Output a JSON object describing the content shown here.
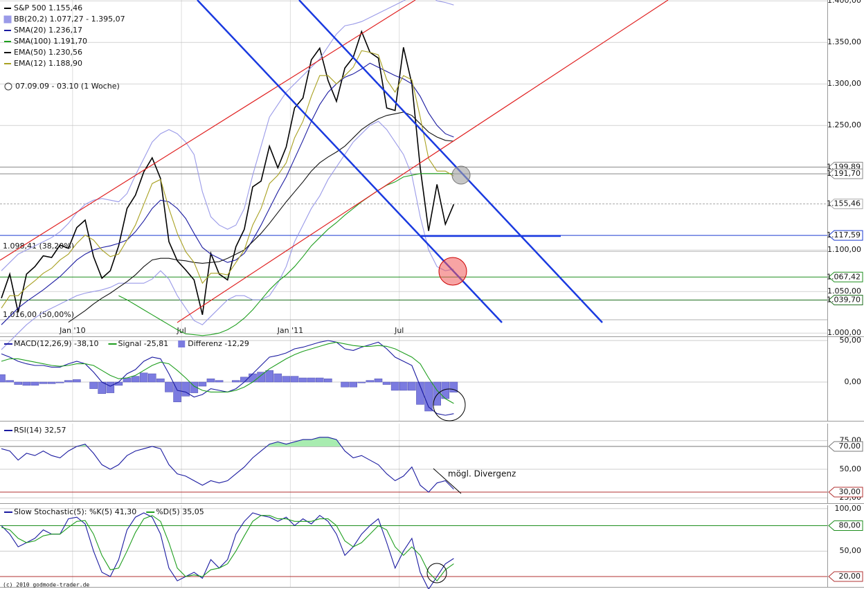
{
  "chart_data": [
    {
      "type": "line",
      "subtitle": "07.09.09 - 03.10 (1 Woche)",
      "x": [
        0,
        2,
        4,
        6,
        8,
        10,
        12,
        14,
        16,
        18,
        20,
        22,
        24,
        26,
        28,
        30,
        32,
        34,
        36,
        38,
        40,
        42,
        44,
        46,
        48,
        50,
        52,
        54,
        56,
        58,
        60,
        62,
        64,
        66,
        68,
        70,
        72,
        74,
        76,
        78,
        80,
        82,
        84,
        86,
        88,
        90,
        92,
        94,
        96,
        98,
        100,
        102,
        104,
        106,
        108
      ],
      "xlim": [
        -0.33,
        197.2
      ],
      "xticks": [
        {
          "value": 17,
          "label": "Jan '10"
        },
        {
          "value": 43,
          "label": "Jul"
        },
        {
          "value": 69,
          "label": "Jan '11"
        },
        {
          "value": 95,
          "label": "Jul"
        }
      ],
      "ylim": [
        996,
        1401
      ],
      "yticks": [
        {
          "value": 1400,
          "label": "1.400,00"
        },
        {
          "value": 1350,
          "label": "1.350,00"
        },
        {
          "value": 1300,
          "label": "1.300,00"
        },
        {
          "value": 1250,
          "label": "1.250,00"
        },
        {
          "value": 1100,
          "label": "1.100,00"
        },
        {
          "value": 1050,
          "label": "1.050,00"
        },
        {
          "value": 1000,
          "label": "1.000,00"
        }
      ],
      "series": [
        {
          "name": "S&P 500 1.155,46",
          "color": "#000000",
          "values": [
            1042,
            1071,
            1025,
            1071,
            1080,
            1093,
            1091,
            1106,
            1102,
            1127,
            1136,
            1092,
            1066,
            1075,
            1105,
            1150,
            1166,
            1194,
            1211,
            1186,
            1110,
            1087,
            1076,
            1064,
            1022,
            1096,
            1071,
            1064,
            1104,
            1125,
            1176,
            1183,
            1225,
            1199,
            1224,
            1271,
            1283,
            1329,
            1343,
            1304,
            1279,
            1319,
            1332,
            1363,
            1338,
            1331,
            1271,
            1268,
            1344,
            1300,
            1199,
            1123,
            1179,
            1131,
            1155
          ]
        },
        {
          "name": "BB(20,2) 1.077,27 - 1.395,07",
          "color": "#9a9ae8",
          "values": [
            1075,
            1085,
            1095,
            1100,
            1105,
            1110,
            1115,
            1122,
            1132,
            1145,
            1155,
            1160,
            1162,
            1160,
            1158,
            1168,
            1190,
            1210,
            1230,
            1240,
            1245,
            1240,
            1230,
            1215,
            1170,
            1140,
            1130,
            1125,
            1130,
            1150,
            1190,
            1225,
            1260,
            1275,
            1290,
            1300,
            1310,
            1320,
            1330,
            1345,
            1360,
            1370,
            1372,
            1375,
            1380,
            1385,
            1390,
            1395,
            1400,
            1405,
            1410,
            1408,
            1400,
            1398,
            1395
          ]
        },
        {
          "color": "#9a9ae8",
          "values": [
            980,
            990,
            1000,
            1010,
            1018,
            1025,
            1030,
            1035,
            1040,
            1045,
            1048,
            1050,
            1052,
            1055,
            1060,
            1060,
            1060,
            1060,
            1065,
            1075,
            1065,
            1045,
            1030,
            1015,
            1010,
            1020,
            1030,
            1040,
            1045,
            1045,
            1040,
            1040,
            1045,
            1060,
            1080,
            1110,
            1130,
            1150,
            1165,
            1185,
            1200,
            1215,
            1230,
            1240,
            1250,
            1255,
            1245,
            1230,
            1215,
            1190,
            1140,
            1100,
            1080,
            1075,
            1077
          ]
        },
        {
          "name": "SMA(20) 1.236,17",
          "color": "#1a1aa0",
          "values": [
            1010,
            1020,
            1030,
            1038,
            1045,
            1052,
            1060,
            1068,
            1078,
            1088,
            1095,
            1100,
            1103,
            1105,
            1108,
            1112,
            1122,
            1135,
            1150,
            1160,
            1158,
            1150,
            1138,
            1120,
            1103,
            1095,
            1090,
            1085,
            1088,
            1096,
            1112,
            1130,
            1150,
            1170,
            1188,
            1210,
            1232,
            1255,
            1275,
            1290,
            1300,
            1308,
            1312,
            1318,
            1325,
            1320,
            1315,
            1310,
            1306,
            1300,
            1285,
            1265,
            1250,
            1240,
            1236
          ]
        },
        {
          "name": "SMA(100) 1.191,70",
          "color": "#1e9e1e",
          "values": [
            null,
            null,
            null,
            null,
            null,
            null,
            null,
            null,
            null,
            null,
            null,
            null,
            null,
            null,
            1045,
            1040,
            1034,
            1028,
            1022,
            1016,
            1010,
            1004,
            999,
            998,
            997,
            998,
            1000,
            1004,
            1010,
            1018,
            1028,
            1040,
            1052,
            1062,
            1070,
            1080,
            1092,
            1105,
            1115,
            1125,
            1133,
            1142,
            1150,
            1158,
            1165,
            1172,
            1178,
            1182,
            1188,
            1190,
            1192,
            1192,
            1192,
            1192,
            1192
          ]
        },
        {
          "name": "EMA(50) 1.230,56",
          "color": "#111111",
          "values": [
            null,
            null,
            null,
            null,
            null,
            null,
            null,
            null,
            1013,
            1020,
            1027,
            1035,
            1042,
            1048,
            1055,
            1062,
            1070,
            1080,
            1088,
            1090,
            1090,
            1088,
            1087,
            1085,
            1084,
            1085,
            1086,
            1090,
            1095,
            1100,
            1110,
            1120,
            1132,
            1145,
            1158,
            1170,
            1182,
            1195,
            1205,
            1212,
            1218,
            1225,
            1235,
            1245,
            1252,
            1258,
            1262,
            1264,
            1266,
            1262,
            1252,
            1242,
            1236,
            1232,
            1231
          ]
        },
        {
          "name": "EMA(12) 1.188,90",
          "color": "#a8a020",
          "values": [
            1030,
            1045,
            1045,
            1055,
            1063,
            1072,
            1078,
            1088,
            1095,
            1108,
            1118,
            1112,
            1100,
            1092,
            1095,
            1112,
            1130,
            1155,
            1180,
            1185,
            1150,
            1120,
            1098,
            1085,
            1060,
            1072,
            1072,
            1070,
            1085,
            1100,
            1130,
            1150,
            1180,
            1190,
            1205,
            1235,
            1255,
            1285,
            1310,
            1310,
            1300,
            1310,
            1320,
            1340,
            1338,
            1335,
            1305,
            1290,
            1310,
            1305,
            1260,
            1210,
            1195,
            1195,
            1189
          ]
        }
      ],
      "levels": [
        {
          "value": 1199.89,
          "label": "1.199,89",
          "color": "#888888"
        },
        {
          "value": 1191.7,
          "label": "1.191,70",
          "color": "#888888"
        },
        {
          "value": 1155.46,
          "label": "1.155,46",
          "color": "#aaaaaa"
        },
        {
          "value": 1117.59,
          "label": "1.117,59",
          "color": "#1a3ad0"
        },
        {
          "value": 1067.42,
          "label": "1.067,42",
          "color": "#1e8e1e"
        },
        {
          "value": 1039.7,
          "label": "1.039,70",
          "color": "#1e6e1e"
        }
      ],
      "fib": [
        {
          "value": 1098.41,
          "label": "1.098,41 (38,20%)"
        },
        {
          "value": 1016,
          "label": "1.016,00 (50,00%)"
        }
      ]
    },
    {
      "type": "line",
      "x": [
        0,
        2,
        4,
        6,
        8,
        10,
        12,
        14,
        16,
        18,
        20,
        22,
        24,
        26,
        28,
        30,
        32,
        34,
        36,
        38,
        40,
        42,
        44,
        46,
        48,
        50,
        52,
        54,
        56,
        58,
        60,
        62,
        64,
        66,
        68,
        70,
        72,
        74,
        76,
        78,
        80,
        82,
        84,
        86,
        88,
        90,
        92,
        94,
        96,
        98,
        100,
        102,
        104,
        106,
        108
      ],
      "ylim": [
        -46.7,
        54.2
      ],
      "yticks": [
        {
          "value": 50,
          "label": "50,00"
        },
        {
          "value": 0,
          "label": "0,00"
        }
      ],
      "series": [
        {
          "name": "Differenz -12,29",
          "type": "bar",
          "color": "#7b7be0",
          "values": [
            9,
            2,
            -3,
            -4,
            -4,
            -2,
            -2,
            -1,
            2,
            3,
            0,
            -8,
            -14,
            -13,
            -4,
            5,
            7,
            11,
            10,
            4,
            -12,
            -24,
            -17,
            -13,
            -5,
            4,
            2,
            0,
            2,
            6,
            10,
            12,
            14,
            10,
            7,
            7,
            5,
            5,
            5,
            4,
            0,
            -6,
            -6,
            -1,
            2,
            4,
            -3,
            -10,
            -10,
            -10,
            -27,
            -35,
            -28,
            -20,
            -12.29
          ]
        },
        {
          "name": "MACD(12,26,9) -38,10",
          "color": "#1a1aa0",
          "values": [
            34,
            30,
            25,
            22,
            20,
            20,
            18,
            18,
            22,
            25,
            22,
            12,
            0,
            -5,
            0,
            10,
            15,
            25,
            30,
            28,
            10,
            -10,
            -12,
            -18,
            -15,
            -8,
            -10,
            -12,
            -8,
            0,
            10,
            20,
            30,
            32,
            35,
            40,
            42,
            45,
            48,
            50,
            48,
            40,
            38,
            42,
            45,
            48,
            40,
            30,
            25,
            20,
            -5,
            -30,
            -38,
            -40,
            -38.1
          ]
        },
        {
          "name": "Signal -25,81",
          "color": "#1e9e1e",
          "values": [
            25,
            28,
            28,
            26,
            24,
            22,
            20,
            19,
            20,
            22,
            22,
            20,
            14,
            8,
            4,
            5,
            8,
            14,
            20,
            24,
            22,
            14,
            5,
            -5,
            -10,
            -12,
            -12,
            -12,
            -10,
            -6,
            0,
            8,
            16,
            22,
            28,
            33,
            37,
            40,
            43,
            46,
            48,
            46,
            44,
            43,
            43,
            44,
            43,
            40,
            35,
            30,
            22,
            5,
            -10,
            -20,
            -25.81
          ]
        }
      ]
    },
    {
      "type": "line",
      "x": [
        0,
        2,
        4,
        6,
        8,
        10,
        12,
        14,
        16,
        18,
        20,
        22,
        24,
        26,
        28,
        30,
        32,
        34,
        36,
        38,
        40,
        42,
        44,
        46,
        48,
        50,
        52,
        54,
        56,
        58,
        60,
        62,
        64,
        66,
        68,
        70,
        72,
        74,
        76,
        78,
        80,
        82,
        84,
        86,
        88,
        90,
        92,
        94,
        96,
        98,
        100,
        102,
        104,
        106,
        108
      ],
      "ylim": [
        20.3,
        90
      ],
      "yticks": [
        {
          "value": 75,
          "label": "75,00"
        },
        {
          "value": 50,
          "label": "50,00"
        },
        {
          "value": 25,
          "label": "25,00"
        }
      ],
      "levels": [
        {
          "value": 70,
          "label": "70,00",
          "color": "#777777"
        },
        {
          "value": 30,
          "label": "30,00",
          "color": "#b03030"
        }
      ],
      "zone_fill": true,
      "annotation": "mögl. Divergenz",
      "series": [
        {
          "name": "RSI(14) 32,57",
          "color": "#1a1aa0",
          "values": [
            68,
            66,
            58,
            64,
            62,
            66,
            62,
            60,
            66,
            70,
            72,
            64,
            54,
            50,
            54,
            62,
            66,
            68,
            70,
            68,
            54,
            46,
            44,
            40,
            36,
            40,
            38,
            40,
            46,
            52,
            60,
            66,
            72,
            74,
            72,
            74,
            76,
            76,
            78,
            78,
            76,
            66,
            60,
            62,
            58,
            54,
            46,
            40,
            44,
            52,
            36,
            30,
            38,
            40,
            32.57
          ]
        }
      ]
    },
    {
      "type": "line",
      "x": [
        0,
        2,
        4,
        6,
        8,
        10,
        12,
        14,
        16,
        18,
        20,
        22,
        24,
        26,
        28,
        30,
        32,
        34,
        36,
        38,
        40,
        42,
        44,
        46,
        48,
        50,
        52,
        54,
        56,
        58,
        60,
        62,
        64,
        66,
        68,
        70,
        72,
        74,
        76,
        78,
        80,
        82,
        84,
        86,
        88,
        90,
        92,
        94,
        96,
        98,
        100,
        102,
        104,
        106,
        108
      ],
      "ylim": [
        7.8,
        104
      ],
      "yticks": [
        {
          "value": 100,
          "label": "100,00"
        },
        {
          "value": 50,
          "label": "50,00"
        }
      ],
      "levels": [
        {
          "value": 80,
          "label": "80,00",
          "color": "#1e8e1e"
        },
        {
          "value": 20,
          "label": "20,00",
          "color": "#b03030"
        }
      ],
      "footer": "(c) 2010 godmode-trader.de",
      "series": [
        {
          "name": "Slow Stochastic(5): %K(5) 41,30",
          "color": "#1a1aa0",
          "values": [
            80,
            70,
            55,
            60,
            65,
            75,
            70,
            70,
            88,
            90,
            82,
            50,
            25,
            20,
            40,
            75,
            90,
            95,
            90,
            70,
            30,
            15,
            20,
            25,
            18,
            40,
            30,
            40,
            70,
            85,
            95,
            92,
            90,
            85,
            90,
            80,
            88,
            82,
            92,
            85,
            70,
            45,
            55,
            70,
            80,
            88,
            60,
            30,
            50,
            65,
            25,
            5,
            20,
            35,
            41.3
          ]
        },
        {
          "name": "%D(5) 35,05",
          "color": "#1e9e1e",
          "values": [
            78,
            75,
            65,
            60,
            62,
            68,
            70,
            70,
            78,
            85,
            86,
            70,
            45,
            28,
            30,
            50,
            72,
            88,
            92,
            85,
            60,
            30,
            20,
            22,
            20,
            28,
            30,
            35,
            50,
            68,
            85,
            92,
            92,
            88,
            88,
            85,
            85,
            85,
            88,
            88,
            80,
            62,
            55,
            60,
            70,
            80,
            75,
            55,
            45,
            55,
            45,
            25,
            15,
            28,
            35.05
          ]
        }
      ]
    }
  ]
}
